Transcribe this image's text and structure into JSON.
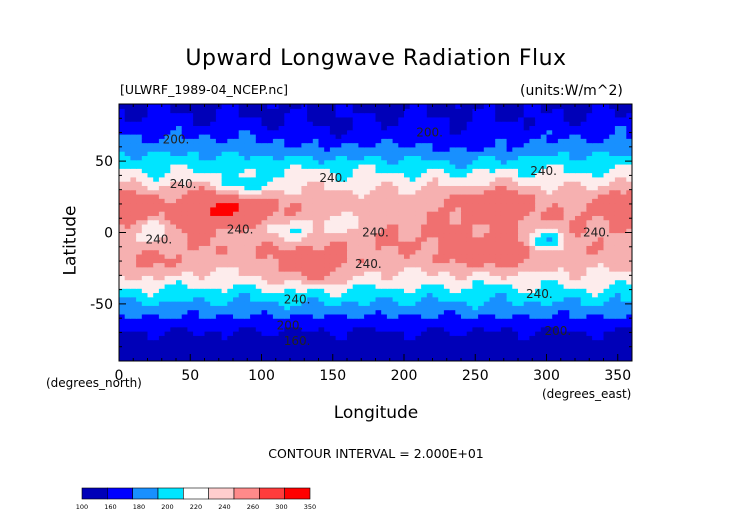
{
  "chart_data": {
    "type": "heatmap",
    "title": "Upward Longwave Radiation Flux",
    "subtitle_left": "[ULWRF_1989-04_NCEP.nc]",
    "subtitle_right": "(units:W/m^2)",
    "xlabel": "Longitude",
    "xlabel_units": "(degrees_east)",
    "ylabel": "Latitude",
    "ylabel_units": "(degrees_north)",
    "xlim": [
      0,
      360
    ],
    "ylim": [
      -90,
      90
    ],
    "x_ticks": [
      0,
      50,
      100,
      150,
      200,
      250,
      300,
      350
    ],
    "y_ticks": [
      -50,
      0,
      50
    ],
    "footnote": "CONTOUR INTERVAL = 2.000E+01",
    "contour_labels": [
      {
        "text": "200.",
        "x": 40,
        "y": 65
      },
      {
        "text": "200.",
        "x": 218,
        "y": 70
      },
      {
        "text": "240.",
        "x": 45,
        "y": 34
      },
      {
        "text": "240.",
        "x": 150,
        "y": 38
      },
      {
        "text": "240.",
        "x": 298,
        "y": 43
      },
      {
        "text": "240.",
        "x": 295,
        "y": -43
      },
      {
        "text": "240.",
        "x": 28,
        "y": -5
      },
      {
        "text": "240.",
        "x": 85,
        "y": 2
      },
      {
        "text": "240.",
        "x": 180,
        "y": 0
      },
      {
        "text": "240.",
        "x": 175,
        "y": -22
      },
      {
        "text": "240.",
        "x": 335,
        "y": 0
      },
      {
        "text": "240.",
        "x": 125,
        "y": -47
      },
      {
        "text": "200.",
        "x": 120,
        "y": -65
      },
      {
        "text": "200.",
        "x": 308,
        "y": -69
      },
      {
        "text": "160.",
        "x": 125,
        "y": -76
      }
    ],
    "colorbar": {
      "levels": [
        "100",
        "160",
        "180",
        "200",
        "220",
        "240",
        "260",
        "300",
        "350"
      ],
      "colors": [
        "#0000b8",
        "#0000ff",
        "#1890ff",
        "#00e5ff",
        "#ffffff",
        "#ffcece",
        "#ff8a8a",
        "#ff3c3c",
        "#ff0000"
      ]
    },
    "field_colors": {
      "lt160": "#0000b8",
      "160_180": "#0000ff",
      "180_200": "#1890ff",
      "200_220": "#00e5ff",
      "220_240": "#fdecec",
      "240_260": "#f6b0b0",
      "260_300": "#f07070",
      "300_350": "#ff0000"
    }
  }
}
